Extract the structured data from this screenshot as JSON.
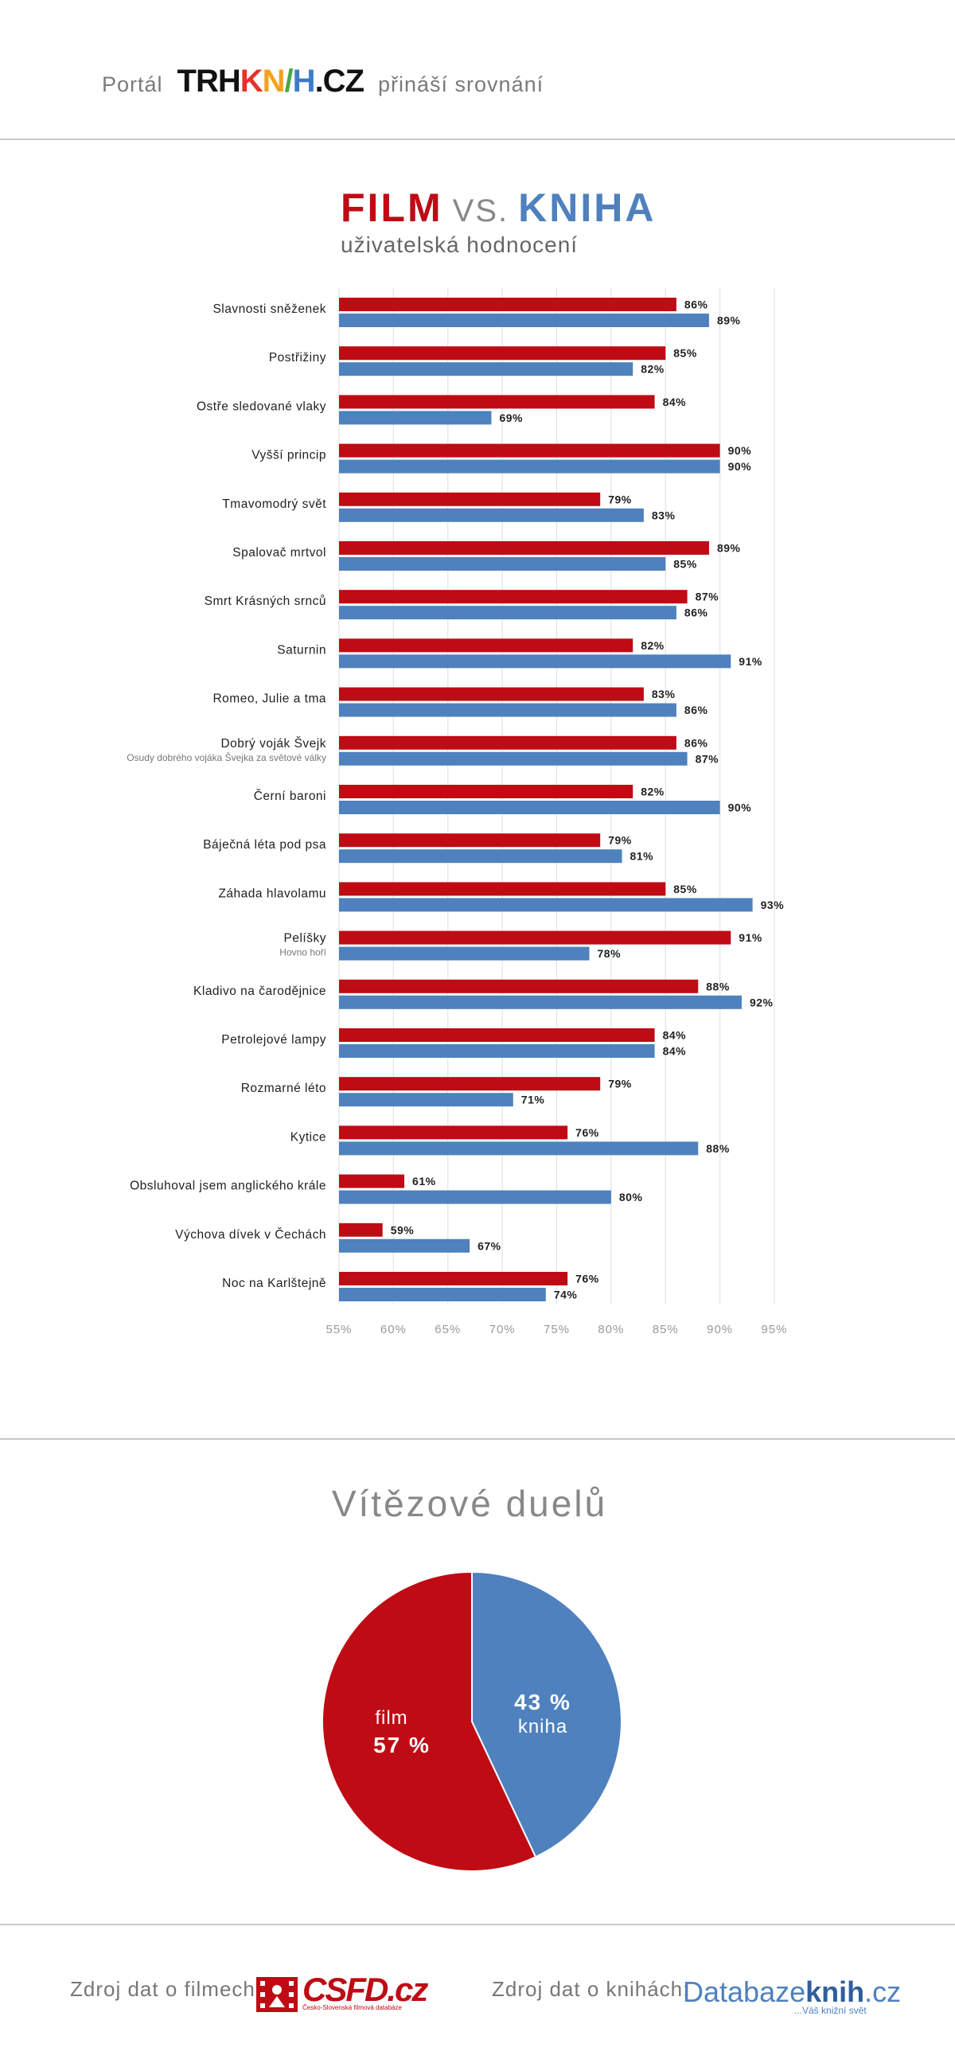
{
  "header": {
    "prefix": "Portál",
    "brand_parts": [
      {
        "text": "TRH",
        "color": "#111111"
      },
      {
        "text": "K",
        "color": "#e8312a"
      },
      {
        "text": "N",
        "color": "#f6a11a"
      },
      {
        "text": "/",
        "color": "#4aa64a"
      },
      {
        "text": "H",
        "color": "#3d7cc9"
      },
      {
        "text": ".CZ",
        "color": "#111111"
      }
    ],
    "suffix": "přináší srovnání"
  },
  "title": {
    "film": "FILM",
    "vs": "VS.",
    "kniha": "KNIHA",
    "subtitle": "uživatelská hodnocení"
  },
  "colors": {
    "film": "#bf0b14",
    "kniha": "#4e81bd"
  },
  "chart_data": [
    {
      "type": "bar",
      "orientation": "horizontal",
      "categories": [
        "Slavnosti sněženek",
        "Postřižiny",
        "Ostře sledované vlaky",
        "Vyšší princip",
        "Tmavomodrý svět",
        "Spalovač mrtvol",
        "Smrt Krásných srnců",
        "Saturnin",
        "Romeo, Julie a tma",
        "Dobrý voják Švejk",
        "Černí baroni",
        "Báječná léta pod psa",
        "Záhada hlavolamu",
        "Pelíšky",
        "Kladivo na čarodějnice",
        "Petrolejové lampy",
        "Rozmarné léto",
        "Kytice",
        "Obsluhoval jsem anglického krále",
        "Výchova dívek v Čechách",
        "Noc na Karlštejně"
      ],
      "category_subtitles": [
        "",
        "",
        "",
        "",
        "",
        "",
        "",
        "",
        "",
        "Osudy dobrého vojáka Švejka za světové války",
        "",
        "",
        "",
        "Hovno hoří",
        "",
        "",
        "",
        "",
        "",
        "",
        ""
      ],
      "series": [
        {
          "values": [
            86,
            85,
            84,
            90,
            79,
            89,
            87,
            82,
            83,
            86,
            82,
            79,
            85,
            91,
            88,
            84,
            79,
            76,
            61,
            59,
            76
          ]
        },
        {
          "values": [
            89,
            82,
            69,
            90,
            83,
            85,
            86,
            91,
            86,
            87,
            90,
            81,
            93,
            78,
            92,
            84,
            71,
            88,
            80,
            67,
            74
          ]
        }
      ],
      "value_suffix": "%",
      "xlim": [
        55,
        95
      ],
      "xticks": [
        55,
        60,
        65,
        70,
        75,
        80,
        85,
        90,
        95
      ],
      "xtick_labels": [
        "55%",
        "60%",
        "65%",
        "70%",
        "75%",
        "80%",
        "85%",
        "90%",
        "95%"
      ],
      "grid": true
    },
    {
      "type": "pie",
      "title": "Vítězové duelů",
      "slices": [
        {
          "label": "kniha",
          "value": 43,
          "value_text": "43 %",
          "color": "#4e81bd"
        },
        {
          "label": "film",
          "value": 57,
          "value_text": "57 %",
          "color": "#bf0b14"
        }
      ]
    }
  ],
  "footer": {
    "film_source_label": "Zdroj dat o filmech:",
    "film_source_logo": "CSFD.cz",
    "film_source_tagline": "Česko-Slovenská filmová databáze",
    "book_source_label": "Zdroj dat o knihách:",
    "book_source_logo_a": "Databaze",
    "book_source_logo_b": "knih",
    "book_source_logo_c": ".cz",
    "book_source_tagline": "...Váš knižní svět"
  }
}
